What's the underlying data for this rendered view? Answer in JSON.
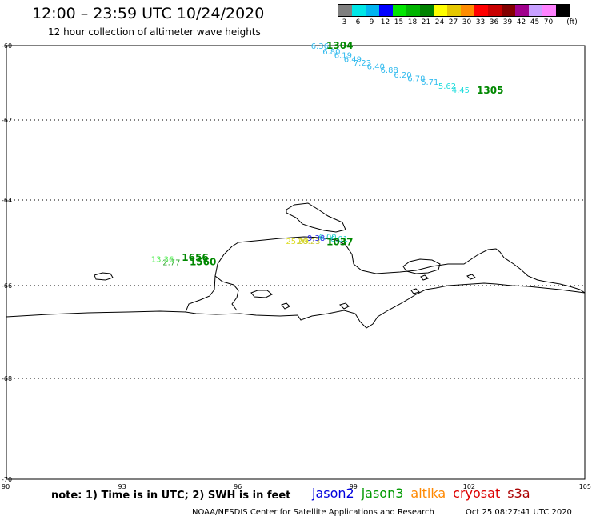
{
  "header": {
    "title": "12:00 – 23:59 UTC 10/24/2020",
    "subtitle": "12 hour collection of altimeter wave heights"
  },
  "legend": {
    "unit": "(ft)",
    "bins": [
      {
        "label": "3",
        "color": "#7f7f7f"
      },
      {
        "label": "6",
        "color": "#00e6e6"
      },
      {
        "label": "9",
        "color": "#00b4f0"
      },
      {
        "label": "12",
        "color": "#0000ff"
      },
      {
        "label": "15",
        "color": "#00e600"
      },
      {
        "label": "18",
        "color": "#00b400"
      },
      {
        "label": "21",
        "color": "#008200"
      },
      {
        "label": "24",
        "color": "#ffff00"
      },
      {
        "label": "27",
        "color": "#e6c800"
      },
      {
        "label": "30",
        "color": "#ff8c00"
      },
      {
        "label": "33",
        "color": "#ff0000"
      },
      {
        "label": "36",
        "color": "#c80000"
      },
      {
        "label": "39",
        "color": "#820000"
      },
      {
        "label": "42",
        "color": "#a0008c"
      },
      {
        "label": "45",
        "color": "#c8a0ff"
      },
      {
        "label": "70",
        "color": "#ff82ff"
      },
      {
        "label": "",
        "color": "#000000"
      }
    ]
  },
  "map": {
    "lat_labels": [
      {
        "lat": -60,
        "label": "-60"
      },
      {
        "lat": -62,
        "label": "-62"
      },
      {
        "lat": -64,
        "label": "-64"
      },
      {
        "lat": -66,
        "label": "-66"
      },
      {
        "lat": -68,
        "label": "-68"
      },
      {
        "lat": -70,
        "label": "-70"
      }
    ],
    "lon_labels": [
      {
        "lon": 90,
        "label": "90"
      },
      {
        "lon": 93,
        "label": "93"
      },
      {
        "lon": 96,
        "label": "96"
      },
      {
        "lon": 99,
        "label": "99"
      },
      {
        "lon": 102,
        "label": "102"
      },
      {
        "lon": 105,
        "label": "105"
      }
    ],
    "observations": [
      {
        "lon": 97.9,
        "lat": -60.0,
        "value": "6.36",
        "color": "#33bbee"
      },
      {
        "lon": 98.2,
        "lat": -60.15,
        "value": "6.80",
        "color": "#33bbee"
      },
      {
        "lon": 98.5,
        "lat": -60.25,
        "value": "6.19",
        "color": "#33bbee"
      },
      {
        "lon": 98.75,
        "lat": -60.35,
        "value": "6.49",
        "color": "#33bbee"
      },
      {
        "lon": 99.0,
        "lat": -60.45,
        "value": "7.23",
        "color": "#33bbee"
      },
      {
        "lon": 99.35,
        "lat": -60.55,
        "value": "6.40",
        "color": "#33bbee"
      },
      {
        "lon": 99.7,
        "lat": -60.65,
        "value": "6.88",
        "color": "#33bbee"
      },
      {
        "lon": 100.05,
        "lat": -60.77,
        "value": "6.20",
        "color": "#33bbee"
      },
      {
        "lon": 100.4,
        "lat": -60.87,
        "value": "6.78",
        "color": "#33bbee"
      },
      {
        "lon": 100.75,
        "lat": -60.97,
        "value": "6.71",
        "color": "#33bbee"
      },
      {
        "lon": 101.2,
        "lat": -61.08,
        "value": "5.62",
        "color": "#22dddd"
      },
      {
        "lon": 101.55,
        "lat": -61.18,
        "value": "4.45",
        "color": "#22dddd"
      },
      {
        "lon": 97.25,
        "lat": -64.95,
        "value": "25.09",
        "color": "#dddd22"
      },
      {
        "lon": 97.55,
        "lat": -64.95,
        "value": "20.23",
        "color": "#cccc33"
      },
      {
        "lon": 97.8,
        "lat": -64.88,
        "value": "9.38",
        "color": "#2222ee"
      },
      {
        "lon": 98.1,
        "lat": -64.85,
        "value": "6.00",
        "color": "#22cccc"
      },
      {
        "lon": 98.4,
        "lat": -64.9,
        "value": "6.01",
        "color": "#22cccc"
      },
      {
        "lon": 93.75,
        "lat": -65.37,
        "value": "13.36",
        "color": "#55ee55"
      },
      {
        "lon": 94.05,
        "lat": -65.45,
        "value": "2.77",
        "color": "#33aa33"
      }
    ],
    "passes": [
      {
        "lon": 98.3,
        "lat": -60.0,
        "label": "1304",
        "color": "#008800"
      },
      {
        "lon": 102.2,
        "lat": -61.2,
        "label": "1305",
        "color": "#008800"
      },
      {
        "lon": 98.3,
        "lat": -64.98,
        "label": "1037",
        "color": "#008800"
      },
      {
        "lon": 94.55,
        "lat": -65.35,
        "label": "1656",
        "color": "#008800"
      },
      {
        "lon": 94.75,
        "lat": -65.45,
        "label": "1560",
        "color": "#008800"
      }
    ]
  },
  "footer": {
    "note": "note:  1) Time is in UTC;  2) SWH is in feet",
    "satellites": [
      {
        "name": "jason2",
        "color": "#0000dd"
      },
      {
        "name": "jason3",
        "color": "#009900"
      },
      {
        "name": "altika",
        "color": "#ff8800"
      },
      {
        "name": "cryosat",
        "color": "#dd0000"
      },
      {
        "name": "s3a",
        "color": "#aa0000"
      }
    ],
    "credit": "NOAA/NESDIS Center for Satellite Applications and Research",
    "timestamp": "Oct 25 08:27:41 UTC 2020"
  }
}
